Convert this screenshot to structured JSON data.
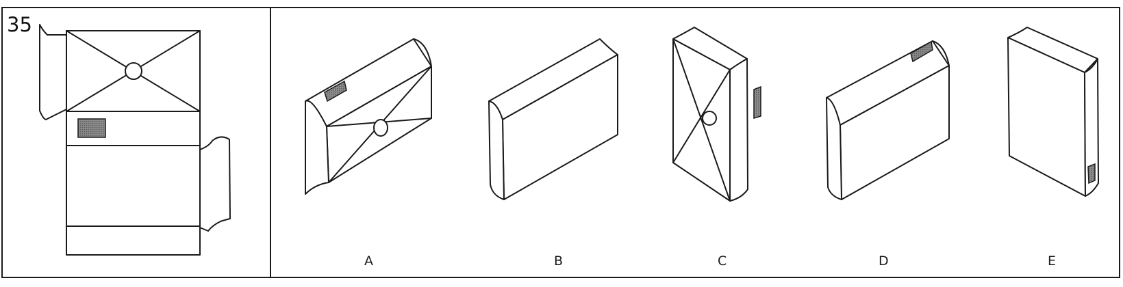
{
  "question": {
    "number": "35"
  },
  "options": [
    {
      "label": "A"
    },
    {
      "label": "B"
    },
    {
      "label": "C"
    },
    {
      "label": "D"
    },
    {
      "label": "E"
    }
  ],
  "colors": {
    "line": "#1a1a1a",
    "background": "#ffffff",
    "patch": "#8c8c8c",
    "patch_hatch": "#555555"
  }
}
